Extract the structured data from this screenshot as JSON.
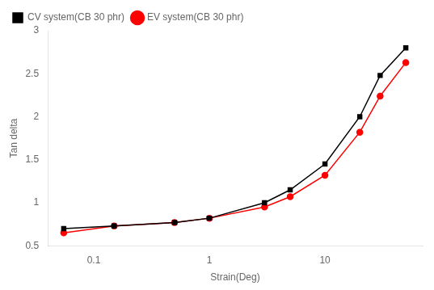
{
  "chart_data": {
    "type": "line",
    "x": [
      0.055,
      0.15,
      0.5,
      1.0,
      3.0,
      5.0,
      10.0,
      20.0,
      30.0,
      50.0
    ],
    "series": [
      {
        "name": "CV system(CB 30 phr)",
        "color": "#000000",
        "marker": "square",
        "values": [
          0.7,
          0.73,
          0.77,
          0.82,
          1.0,
          1.15,
          1.45,
          2.0,
          2.48,
          2.8
        ]
      },
      {
        "name": "EV system(CB 30 phr)",
        "color": "#ff0000",
        "marker": "circle",
        "values": [
          0.65,
          0.73,
          0.77,
          0.82,
          0.95,
          1.07,
          1.32,
          1.82,
          2.24,
          2.63
        ]
      }
    ],
    "xlabel": "Strain(Deg)",
    "ylabel": "Tan delta",
    "log": "x",
    "xlim": [
      0.04,
      70
    ],
    "xticks": [
      0.1,
      1,
      10
    ],
    "ylim": [
      0.5,
      3.0
    ],
    "yticks": [
      0.5,
      1.0,
      1.5,
      2.0,
      2.5,
      3.0
    ],
    "grid": false,
    "legend": "upper left"
  }
}
